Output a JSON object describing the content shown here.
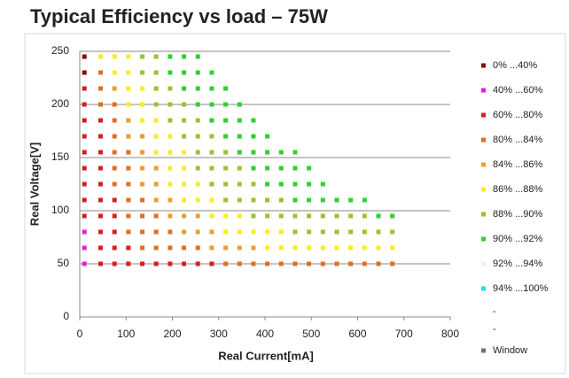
{
  "chart_data": {
    "type": "scatter",
    "title": "Typical Efficiency vs load – 75W",
    "x_label": "Real Current[mA]",
    "y_label": "Real Voltage[V]",
    "xlim": [
      0,
      800
    ],
    "xticks": [
      0,
      100,
      200,
      300,
      400,
      500,
      600,
      700,
      800
    ],
    "ylim": [
      0,
      250
    ],
    "yticks": [
      0,
      50,
      100,
      150,
      200,
      250
    ],
    "grid": true,
    "legend": "right",
    "series": [
      {
        "name": "0% ...40%",
        "color": "#8b0a0a",
        "x": [
          10,
          10
        ],
        "y": [
          245,
          230
        ]
      },
      {
        "name": "40% ...60%",
        "color": "#e020e0",
        "x": [
          10,
          10,
          10
        ],
        "y": [
          80,
          65,
          50
        ]
      },
      {
        "name": "60% ...80%",
        "color": "#d42020",
        "x": [
          10,
          10,
          10,
          45,
          10,
          45,
          10,
          45,
          10,
          45,
          10,
          45,
          10,
          45,
          75,
          10,
          45,
          75,
          45,
          75,
          45,
          75,
          105,
          45,
          75,
          105,
          135,
          165,
          195,
          225,
          255,
          285
        ],
        "y": [
          215,
          200,
          185,
          185,
          170,
          170,
          155,
          155,
          140,
          140,
          125,
          125,
          110,
          110,
          110,
          95,
          95,
          95,
          80,
          80,
          65,
          65,
          65,
          50,
          50,
          50,
          50,
          50,
          50,
          50,
          50,
          50
        ]
      },
      {
        "name": "80% ...84%",
        "color": "#e07020",
        "x": [
          45,
          45,
          45,
          75,
          75,
          75,
          75,
          105,
          75,
          105,
          75,
          105,
          105,
          135,
          105,
          135,
          165,
          105,
          135,
          165,
          195,
          135,
          165,
          195,
          225,
          255,
          315,
          345,
          375,
          405,
          435,
          465,
          495,
          525,
          555,
          585,
          615,
          645,
          675
        ],
        "y": [
          230,
          215,
          200,
          200,
          185,
          170,
          155,
          155,
          140,
          140,
          125,
          125,
          110,
          110,
          95,
          95,
          95,
          80,
          80,
          80,
          80,
          65,
          65,
          65,
          65,
          65,
          50,
          50,
          50,
          50,
          50,
          50,
          50,
          50,
          50,
          50,
          50,
          50,
          50
        ]
      },
      {
        "name": "84% ...86%",
        "color": "#e8a030",
        "x": [
          75,
          105,
          105,
          135,
          135,
          135,
          165,
          135,
          165,
          165,
          195,
          195,
          225,
          255,
          225,
          255,
          285,
          285,
          315,
          345,
          375
        ],
        "y": [
          215,
          185,
          170,
          170,
          155,
          140,
          140,
          125,
          125,
          110,
          110,
          95,
          95,
          95,
          80,
          80,
          80,
          65,
          65,
          65,
          65
        ]
      },
      {
        "name": "86% ...88%",
        "color": "#f2f020",
        "x": [
          45,
          75,
          105,
          75,
          105,
          105,
          135,
          105,
          135,
          135,
          165,
          165,
          195,
          165,
          195,
          225,
          195,
          225,
          195,
          225,
          255,
          225,
          255,
          285,
          285,
          315,
          345,
          315,
          345,
          375,
          405,
          435,
          405,
          435,
          465,
          495,
          525,
          555,
          585,
          615,
          645,
          675
        ],
        "y": [
          245,
          245,
          245,
          230,
          230,
          215,
          215,
          200,
          200,
          185,
          185,
          170,
          170,
          155,
          155,
          155,
          140,
          140,
          125,
          125,
          125,
          110,
          110,
          110,
          95,
          95,
          95,
          80,
          80,
          80,
          80,
          80,
          65,
          65,
          65,
          65,
          65,
          65,
          65,
          65,
          65,
          65
        ]
      },
      {
        "name": "88% ...90%",
        "color": "#a0c030",
        "x": [
          135,
          165,
          135,
          165,
          165,
          195,
          165,
          195,
          225,
          195,
          225,
          255,
          225,
          255,
          285,
          255,
          285,
          315,
          255,
          285,
          315,
          345,
          285,
          315,
          345,
          375,
          315,
          345,
          375,
          405,
          435,
          375,
          405,
          435,
          465,
          495,
          525,
          555,
          585,
          615,
          465,
          495,
          525,
          555,
          585,
          615,
          645,
          675
        ],
        "y": [
          245,
          245,
          230,
          230,
          215,
          215,
          200,
          200,
          200,
          185,
          185,
          185,
          170,
          170,
          170,
          155,
          155,
          155,
          140,
          140,
          140,
          140,
          125,
          125,
          125,
          125,
          110,
          110,
          110,
          110,
          110,
          95,
          95,
          95,
          95,
          95,
          95,
          95,
          95,
          95,
          80,
          80,
          80,
          80,
          80,
          80,
          80,
          80
        ]
      },
      {
        "name": "90% ...92%",
        "color": "#30d030",
        "x": [
          195,
          225,
          255,
          195,
          225,
          255,
          285,
          225,
          255,
          285,
          315,
          255,
          285,
          315,
          345,
          285,
          315,
          345,
          375,
          315,
          345,
          375,
          405,
          345,
          375,
          405,
          435,
          465,
          375,
          405,
          435,
          465,
          495,
          405,
          435,
          465,
          495,
          525,
          465,
          495,
          525,
          555,
          585,
          615,
          645,
          675
        ],
        "y": [
          245,
          245,
          245,
          230,
          230,
          230,
          230,
          215,
          215,
          215,
          215,
          200,
          200,
          200,
          200,
          185,
          185,
          185,
          185,
          170,
          170,
          170,
          170,
          155,
          155,
          155,
          155,
          155,
          140,
          140,
          140,
          140,
          140,
          125,
          125,
          125,
          125,
          125,
          110,
          110,
          110,
          110,
          110,
          110,
          95,
          95
        ]
      },
      {
        "name": "92% ...94%",
        "color": "#e6f6dc",
        "x": [],
        "y": []
      },
      {
        "name": "94% ...100%",
        "color": "#20e0e8",
        "x": [],
        "y": []
      },
      {
        "name": "-",
        "x": [],
        "y": []
      },
      {
        "name": "-",
        "x": [],
        "y": []
      },
      {
        "name": "Window",
        "color": "#707070",
        "x": [],
        "y": []
      }
    ]
  }
}
